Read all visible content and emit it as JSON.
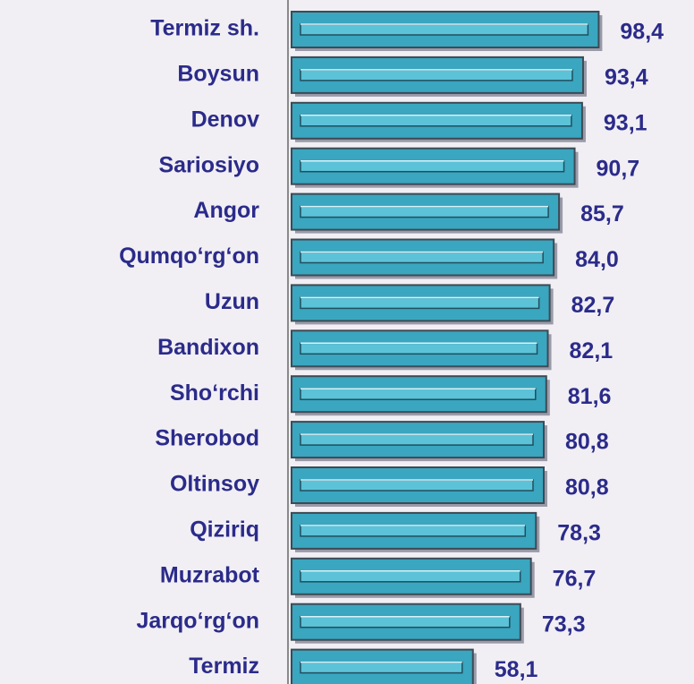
{
  "chart_data": {
    "type": "bar",
    "categories": [
      "Termiz sh.",
      "Boysun",
      "Denov",
      "Sariosiyo",
      "Angor",
      "Qumqo‘rg‘on",
      "Uzun",
      "Bandixon",
      "Sho‘rchi",
      "Sherobod",
      "Oltinsoy",
      "Qiziriq",
      "Muzrabot",
      "Jarqo‘rg‘on",
      "Termiz"
    ],
    "values": [
      98.4,
      93.4,
      93.1,
      90.7,
      85.7,
      84.0,
      82.7,
      82.1,
      81.6,
      80.8,
      80.8,
      78.3,
      76.7,
      73.3,
      58.1
    ],
    "value_labels": [
      "98,4",
      "93,4",
      "93,1",
      "90,7",
      "85,7",
      "84,0",
      "82,7",
      "82,1",
      "81,6",
      "80,8",
      "80,8",
      "78,3",
      "76,7",
      "73,3",
      "58,1"
    ],
    "color": "#3aa6bf"
  }
}
